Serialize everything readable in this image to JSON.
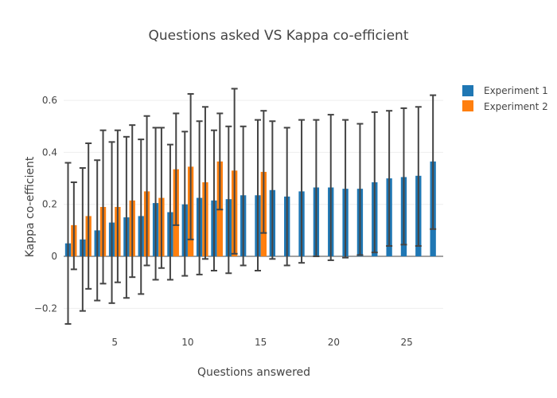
{
  "chart_data": {
    "type": "bar",
    "title": "Questions asked VS Kappa co-efficient",
    "xlabel": "Questions answered",
    "ylabel": "Kappa co-efficient",
    "xlim": [
      1.5,
      27.5
    ],
    "ylim": [
      -0.3,
      0.68
    ],
    "x_ticks": [
      5,
      10,
      15,
      20,
      25
    ],
    "y_ticks": [
      -0.2,
      0,
      0.2,
      0.4,
      0.6
    ],
    "y_tick_labels": [
      "−0.2",
      "0",
      "0.2",
      "0.4",
      "0.6"
    ],
    "grid": true,
    "legend_position": "top-right",
    "error_bars": true,
    "series": [
      {
        "name": "Experiment 1",
        "color": "#1f77b4",
        "x": [
          2,
          3,
          4,
          5,
          6,
          7,
          8,
          9,
          10,
          11,
          12,
          13,
          14,
          15,
          16,
          17,
          18,
          19,
          20,
          21,
          22,
          23,
          24,
          25,
          26,
          27
        ],
        "values": [
          0.05,
          0.065,
          0.1,
          0.13,
          0.15,
          0.155,
          0.205,
          0.17,
          0.2,
          0.225,
          0.215,
          0.22,
          0.235,
          0.235,
          0.255,
          0.23,
          0.25,
          0.265,
          0.265,
          0.26,
          0.26,
          0.285,
          0.3,
          0.305,
          0.31,
          0.365
        ],
        "err_low": [
          -0.26,
          -0.21,
          -0.17,
          -0.18,
          -0.16,
          -0.145,
          -0.09,
          -0.09,
          -0.075,
          -0.07,
          -0.055,
          -0.065,
          -0.035,
          -0.055,
          -0.01,
          -0.035,
          -0.025,
          0.0,
          -0.015,
          -0.005,
          0.005,
          0.015,
          0.04,
          0.045,
          0.04,
          0.105
        ],
        "err_high": [
          0.36,
          0.34,
          0.37,
          0.44,
          0.46,
          0.45,
          0.495,
          0.43,
          0.48,
          0.52,
          0.485,
          0.5,
          0.5,
          0.525,
          0.52,
          0.495,
          0.525,
          0.525,
          0.545,
          0.525,
          0.51,
          0.555,
          0.56,
          0.57,
          0.575,
          0.62
        ]
      },
      {
        "name": "Experiment 2",
        "color": "#ff7f0e",
        "x": [
          2,
          3,
          4,
          5,
          6,
          7,
          8,
          9,
          10,
          11,
          12,
          13,
          15
        ],
        "values": [
          0.12,
          0.155,
          0.19,
          0.19,
          0.215,
          0.25,
          0.225,
          0.335,
          0.345,
          0.285,
          0.365,
          0.33,
          0.325
        ],
        "err_low": [
          -0.05,
          -0.125,
          -0.105,
          -0.1,
          -0.08,
          -0.035,
          -0.045,
          0.12,
          0.065,
          -0.01,
          0.18,
          0.01,
          0.09
        ],
        "err_high": [
          0.285,
          0.435,
          0.485,
          0.485,
          0.505,
          0.54,
          0.495,
          0.55,
          0.625,
          0.575,
          0.55,
          0.645,
          0.56
        ]
      }
    ]
  }
}
